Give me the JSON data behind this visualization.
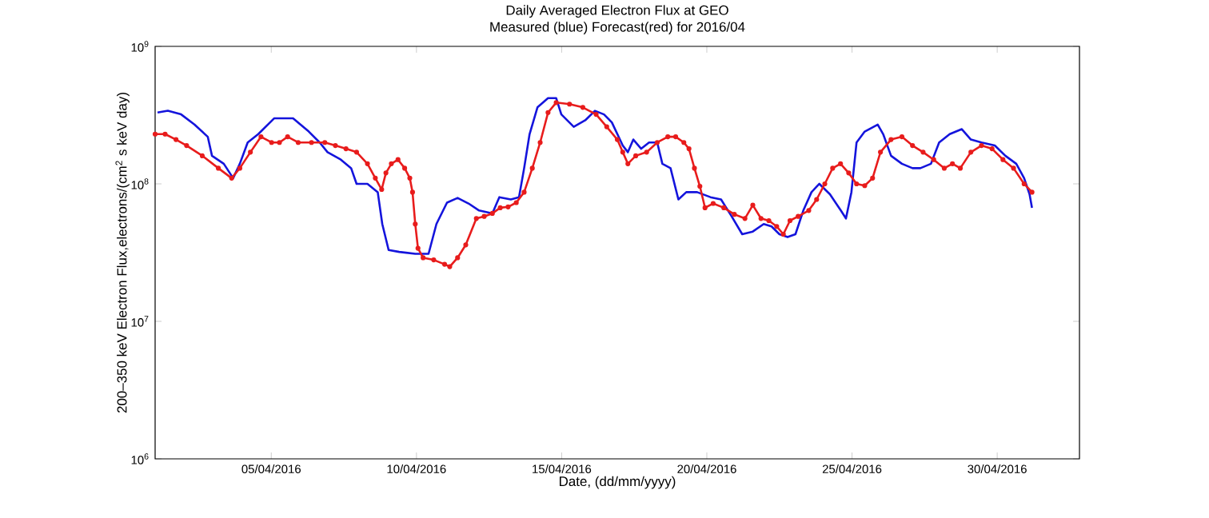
{
  "chart_data": {
    "type": "line",
    "title": "Daily Averaged Electron Flux at GEO",
    "subtitle": "Measured (blue) Forecast(red) for 2016/04",
    "xlabel": "Date, (dd/mm/yyyy)",
    "ylabel": "200–350 keV Electron Flux,electrons/(cm$^{2}$ s keV day)",
    "log": "y",
    "grid": false,
    "xlim": [
      "2016-04-01",
      "2016-05-02T20:00"
    ],
    "xticks": [
      {
        "value": "2016-04-05",
        "label": "05/04/2016"
      },
      {
        "value": "2016-04-10",
        "label": "10/04/2016"
      },
      {
        "value": "2016-04-15",
        "label": "15/04/2016"
      },
      {
        "value": "2016-04-20",
        "label": "20/04/2016"
      },
      {
        "value": "2016-04-25",
        "label": "25/04/2016"
      },
      {
        "value": "2016-04-30",
        "label": "30/04/2016"
      }
    ],
    "ylim": [
      1000000,
      1000000000
    ],
    "yticks": [
      {
        "value": 1000000,
        "label": "10$^{6}$"
      },
      {
        "value": 10000000,
        "label": "10$^{7}$"
      },
      {
        "value": 100000000,
        "label": "10$^{8}$"
      },
      {
        "value": 1000000000,
        "label": "10$^{9}$"
      }
    ],
    "series": [
      {
        "color": "#1414dc",
        "line_style": "solid",
        "marker": "none",
        "x": [
          "2016-04-01T02:00",
          "2016-04-01T10:30",
          "2016-04-01T21:30",
          "2016-04-02T08:30",
          "2016-04-02T19:30",
          "2016-04-02T23:00",
          "2016-04-03T08:45",
          "2016-04-03T16:30",
          "2016-04-03T22:00",
          "2016-04-04T04:30",
          "2016-04-04T13:15",
          "2016-04-05T02:30",
          "2016-04-05T18:00",
          "2016-04-06T07:00",
          "2016-04-06T16:00",
          "2016-04-06T22:30",
          "2016-04-07T09:30",
          "2016-04-07T18:00",
          "2016-04-07T22:30",
          "2016-04-08T07:30",
          "2016-04-08T16:00",
          "2016-04-08T19:45",
          "2016-04-09T01:00",
          "2016-04-09T09:45",
          "2016-04-09T23:00",
          "2016-04-10T10:00",
          "2016-04-10T16:30",
          "2016-04-11T01:15",
          "2016-04-11T10:00",
          "2016-04-11T19:00",
          "2016-04-12T03:45",
          "2016-04-12T14:45",
          "2016-04-12T20:30",
          "2016-04-13T06:00",
          "2016-04-13T12:45",
          "2016-04-13T17:00",
          "2016-04-13T21:30",
          "2016-04-14T04:00",
          "2016-04-14T12:45",
          "2016-04-14T19:30",
          "2016-04-14T23:45",
          "2016-04-15T10:00",
          "2016-04-15T19:30",
          "2016-04-16T03:30",
          "2016-04-16T11:00",
          "2016-04-16T17:30",
          "2016-04-17T02:30",
          "2016-04-17T06:45",
          "2016-04-17T11:15",
          "2016-04-17T17:45",
          "2016-04-18T00:15",
          "2016-04-18T07:00",
          "2016-04-18T11:15",
          "2016-04-18T18:00",
          "2016-04-19T00:30",
          "2016-04-19T07:00",
          "2016-04-19T16:00",
          "2016-04-20T03:00",
          "2016-04-20T11:45",
          "2016-04-20T20:30",
          "2016-04-21T05:15",
          "2016-04-21T14:00",
          "2016-04-21T23:00",
          "2016-04-22T05:30",
          "2016-04-22T12:00",
          "2016-04-22T18:45",
          "2016-04-23T01:15",
          "2016-04-23T07:45",
          "2016-04-23T14:30",
          "2016-04-23T21:00",
          "2016-04-24T05:45",
          "2016-04-24T14:45",
          "2016-04-24T19:00",
          "2016-04-24T23:30",
          "2016-04-25T03:45",
          "2016-04-25T10:30",
          "2016-04-25T21:15",
          "2016-04-26T01:45",
          "2016-04-26T08:15",
          "2016-04-26T17:15",
          "2016-04-27T02:00",
          "2016-04-27T08:30",
          "2016-04-27T17:15",
          "2016-04-28T00:00",
          "2016-04-28T08:45",
          "2016-04-28T18:45",
          "2016-04-29T02:15",
          "2016-04-29T11:00",
          "2016-04-29T22:00",
          "2016-04-30T06:45",
          "2016-04-30T15:45",
          "2016-04-30T22:15",
          "2016-05-01T02:45",
          "2016-05-01T04:45"
        ],
        "values": [
          330000000.0,
          340000000.0,
          320000000.0,
          270000000.0,
          220000000.0,
          160000000.0,
          140000000.0,
          110000000.0,
          140000000.0,
          200000000.0,
          230000000.0,
          300000000.0,
          300000000.0,
          240000000.0,
          200000000.0,
          170000000.0,
          150000000.0,
          130000000.0,
          100000000.0,
          100000000.0,
          87000000.0,
          51000000.0,
          33000000.0,
          32000000.0,
          31000000.0,
          31000000.0,
          51000000.0,
          73000000.0,
          79000000.0,
          72000000.0,
          64000000.0,
          61000000.0,
          80000000.0,
          77000000.0,
          80000000.0,
          130000000.0,
          230000000.0,
          360000000.0,
          420000000.0,
          420000000.0,
          320000000.0,
          260000000.0,
          290000000.0,
          340000000.0,
          320000000.0,
          280000000.0,
          190000000.0,
          170000000.0,
          210000000.0,
          180000000.0,
          200000000.0,
          200000000.0,
          140000000.0,
          130000000.0,
          77000000.0,
          87000000.0,
          87000000.0,
          80000000.0,
          77000000.0,
          58000000.0,
          43000000.0,
          45000000.0,
          51000000.0,
          49000000.0,
          43000000.0,
          41000000.0,
          43000000.0,
          64000000.0,
          87000000.0,
          100000000.0,
          84000000.0,
          64000000.0,
          56000000.0,
          87000000.0,
          200000000.0,
          240000000.0,
          270000000.0,
          230000000.0,
          160000000.0,
          140000000.0,
          130000000.0,
          130000000.0,
          140000000.0,
          200000000.0,
          230000000.0,
          250000000.0,
          210000000.0,
          200000000.0,
          190000000.0,
          160000000.0,
          140000000.0,
          110000000.0,
          84000000.0,
          67000000.0
        ]
      },
      {
        "color": "#e81c1c",
        "line_style": "solid",
        "marker": "circle",
        "x": [
          "2016-04-01T00:00",
          "2016-04-01T08:15",
          "2016-04-01T17:15",
          "2016-04-02T02:00",
          "2016-04-02T15:00",
          "2016-04-03T04:15",
          "2016-04-03T15:15",
          "2016-04-03T22:00",
          "2016-04-04T06:45",
          "2016-04-04T15:30",
          "2016-04-05T00:15",
          "2016-04-05T06:45",
          "2016-04-05T13:30",
          "2016-04-05T22:15",
          "2016-04-06T09:15",
          "2016-04-06T20:15",
          "2016-04-07T05:00",
          "2016-04-07T13:45",
          "2016-04-07T22:30",
          "2016-04-08T07:30",
          "2016-04-08T14:00",
          "2016-04-08T19:15",
          "2016-04-08T22:45",
          "2016-04-09T03:15",
          "2016-04-09T08:45",
          "2016-04-09T14:15",
          "2016-04-09T18:30",
          "2016-04-09T20:45",
          "2016-04-09T23:00",
          "2016-04-10T01:15",
          "2016-04-10T05:30",
          "2016-04-10T14:15",
          "2016-04-10T23:15",
          "2016-04-11T03:30",
          "2016-04-11T10:00",
          "2016-04-11T16:45",
          "2016-04-12T01:30",
          "2016-04-12T08:00",
          "2016-04-12T14:45",
          "2016-04-12T21:15",
          "2016-04-13T03:45",
          "2016-04-13T10:30",
          "2016-04-13T17:00",
          "2016-04-13T23:45",
          "2016-04-14T06:15",
          "2016-04-14T12:45",
          "2016-04-14T19:30",
          "2016-04-15T06:30",
          "2016-04-15T17:30",
          "2016-04-16T04:30",
          "2016-04-16T13:15",
          "2016-04-16T22:00",
          "2016-04-17T02:30",
          "2016-04-17T06:45",
          "2016-04-17T13:15",
          "2016-04-17T22:15",
          "2016-04-18T07:00",
          "2016-04-18T15:45",
          "2016-04-18T22:15",
          "2016-04-19T05:00",
          "2016-04-19T09:15",
          "2016-04-19T13:45",
          "2016-04-19T18:15",
          "2016-04-19T22:30",
          "2016-04-20T05:15",
          "2016-04-20T14:00",
          "2016-04-20T22:45",
          "2016-04-21T07:30",
          "2016-04-21T14:00",
          "2016-04-21T20:45",
          "2016-04-22T03:15",
          "2016-04-22T09:45",
          "2016-04-22T15:15",
          "2016-04-22T20:45",
          "2016-04-23T03:30",
          "2016-04-23T12:15",
          "2016-04-23T18:45",
          "2016-04-24T01:30",
          "2016-04-24T08:00",
          "2016-04-24T14:30",
          "2016-04-24T21:15",
          "2016-04-25T03:45",
          "2016-04-25T10:30",
          "2016-04-25T17:00",
          "2016-04-25T23:30",
          "2016-04-26T08:15",
          "2016-04-26T17:15",
          "2016-04-27T02:00",
          "2016-04-27T10:45",
          "2016-04-27T19:30",
          "2016-04-28T04:15",
          "2016-04-28T11:00",
          "2016-04-28T17:30",
          "2016-04-29T02:15",
          "2016-04-29T11:00",
          "2016-04-29T19:45",
          "2016-04-30T04:45",
          "2016-04-30T13:30",
          "2016-04-30T22:15",
          "2016-05-01T04:45"
        ],
        "values": [
          230000000.0,
          230000000.0,
          210000000.0,
          190000000.0,
          160000000.0,
          130000000.0,
          110000000.0,
          130000000.0,
          170000000.0,
          220000000.0,
          200000000.0,
          200000000.0,
          220000000.0,
          200000000.0,
          200000000.0,
          200000000.0,
          190000000.0,
          180000000.0,
          170000000.0,
          140000000.0,
          110000000.0,
          91000000.0,
          120000000.0,
          140000000.0,
          150000000.0,
          130000000.0,
          110000000.0,
          87000000.0,
          51000000.0,
          34000000.0,
          29000000.0,
          28000000.0,
          26000000.0,
          25000000.0,
          29000000.0,
          36000000.0,
          56000000.0,
          58000000.0,
          61000000.0,
          67000000.0,
          68000000.0,
          73000000.0,
          87000000.0,
          130000000.0,
          200000000.0,
          330000000.0,
          390000000.0,
          380000000.0,
          360000000.0,
          320000000.0,
          260000000.0,
          210000000.0,
          170000000.0,
          140000000.0,
          160000000.0,
          170000000.0,
          200000000.0,
          220000000.0,
          220000000.0,
          200000000.0,
          180000000.0,
          130000000.0,
          96000000.0,
          67000000.0,
          72000000.0,
          67000000.0,
          60000000.0,
          56000000.0,
          70000000.0,
          56000000.0,
          54000000.0,
          49000000.0,
          43000000.0,
          54000000.0,
          58000000.0,
          64000000.0,
          77000000.0,
          100000000.0,
          130000000.0,
          140000000.0,
          120000000.0,
          100000000.0,
          97000000.0,
          110000000.0,
          170000000.0,
          210000000.0,
          220000000.0,
          190000000.0,
          170000000.0,
          150000000.0,
          130000000.0,
          140000000.0,
          130000000.0,
          170000000.0,
          190000000.0,
          180000000.0,
          150000000.0,
          130000000.0,
          100000000.0,
          87000000.0
        ]
      }
    ]
  }
}
